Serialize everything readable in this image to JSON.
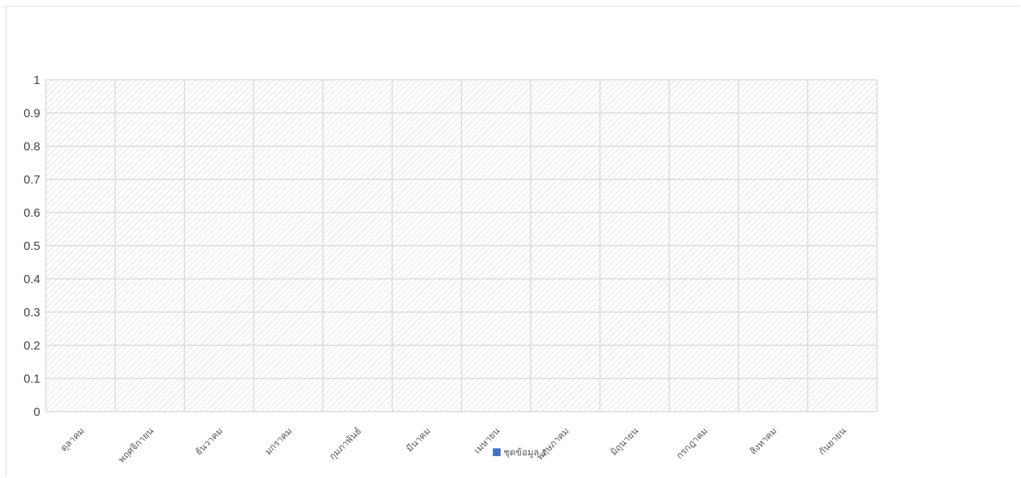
{
  "chart_data": {
    "type": "bar",
    "title": "",
    "xlabel": "",
    "ylabel": "",
    "categories": [
      "ตุลาคม",
      "พฤศจิกายน",
      "ธันวาคม",
      "มกราคม",
      "กุมภาพันธ์",
      "มีนาคม",
      "เมษายน",
      "พฤษภาคม",
      "มิถุนายน",
      "กรกฎาคม",
      "สิงหาคม",
      "กันยายน"
    ],
    "series": [
      {
        "name": "ชุดข้อมูล 1",
        "values": [
          null,
          null,
          null,
          null,
          null,
          null,
          null,
          null,
          null,
          null,
          null,
          null
        ],
        "color": "#4472c4"
      }
    ],
    "ylim": [
      0,
      1
    ],
    "yticks": [
      "0",
      "0.1",
      "0.2",
      "0.3",
      "0.4",
      "0.5",
      "0.6",
      "0.7",
      "0.8",
      "0.9",
      "1"
    ],
    "grid": true,
    "plot_area_fill": "diagonal hatch",
    "legend": "bottom"
  },
  "colors": {
    "gridline": "#d9d9d9",
    "hatch": "#d9d9d9",
    "axis_text": "#404040",
    "series": "#4472c4"
  }
}
